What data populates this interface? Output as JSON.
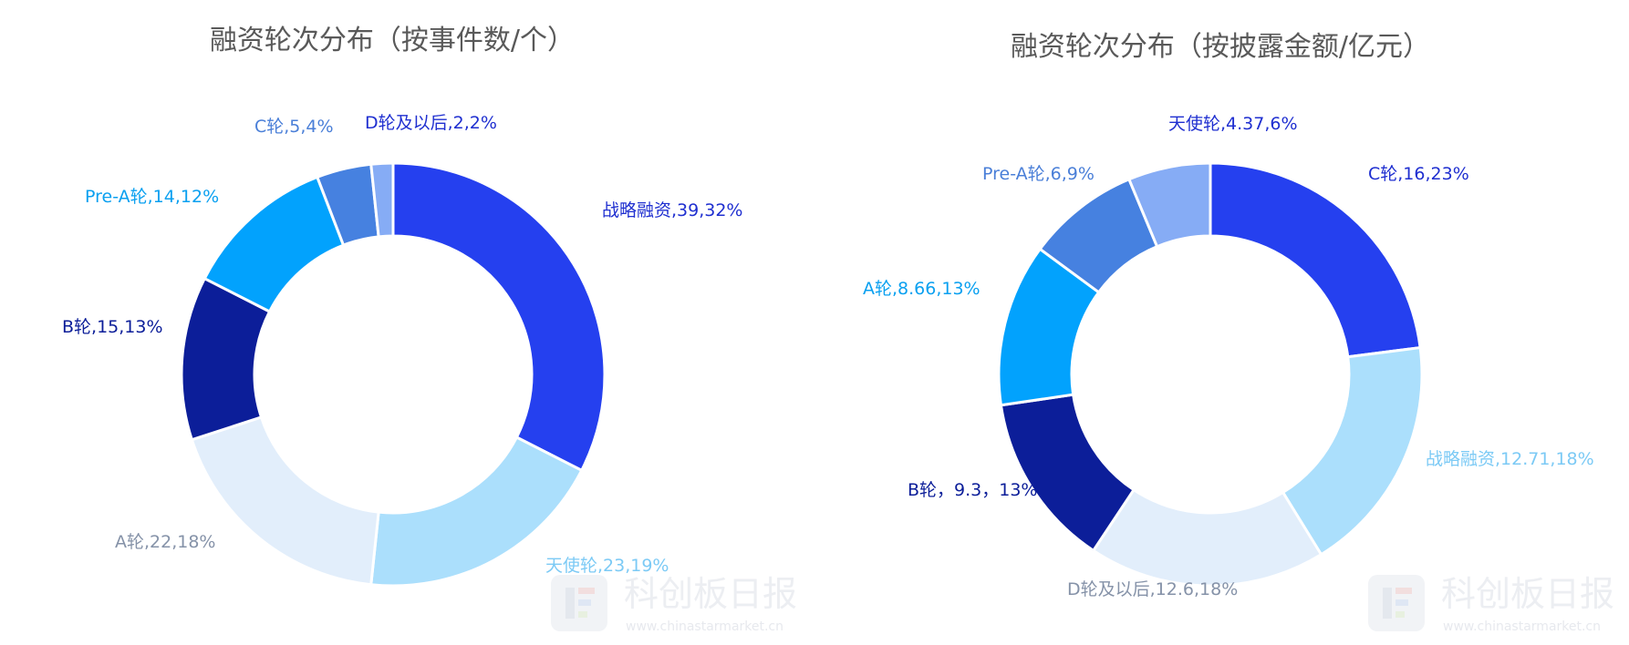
{
  "chart_data": [
    {
      "type": "pie",
      "title": "融资轮次分布（按事件数/个）",
      "unit": "个",
      "slices": [
        {
          "name": "战略融资",
          "value": 39,
          "percent": "32%",
          "label": "战略融资,39,32%",
          "color": "#2540ef",
          "label_color": "#1f2fd0"
        },
        {
          "name": "天使轮",
          "value": 23,
          "percent": "19%",
          "label": "天使轮,23,19%",
          "color": "#abdffc",
          "label_color": "#7ccaf5"
        },
        {
          "name": "A轮",
          "value": 22,
          "percent": "18%",
          "label": "A轮,22,18%",
          "color": "#e2eefb",
          "label_color": "#8592a8"
        },
        {
          "name": "B轮",
          "value": 15,
          "percent": "13%",
          "label": "B轮,15,13%",
          "color": "#0c1e99",
          "label_color": "#0c1e99"
        },
        {
          "name": "Pre-A轮",
          "value": 14,
          "percent": "12%",
          "label": "Pre-A轮,14,12%",
          "color": "#02a2fd",
          "label_color": "#0aa0f0"
        },
        {
          "name": "C轮",
          "value": 5,
          "percent": "4%",
          "label": "C轮,5,4%",
          "color": "#4681e0",
          "label_color": "#4a7fd8"
        },
        {
          "name": "D轮及以后",
          "value": 2,
          "percent": "2%",
          "label": "D轮及以后,2,2%",
          "color": "#86acf5",
          "label_color": "#1f2fd0"
        }
      ]
    },
    {
      "type": "pie",
      "title": "融资轮次分布（按披露金额/亿元）",
      "unit": "亿元",
      "slices": [
        {
          "name": "C轮",
          "value": 16,
          "percent": "23%",
          "label": "C轮,16,23%",
          "color": "#2540ef",
          "label_color": "#1f2fd0"
        },
        {
          "name": "战略融资",
          "value": 12.71,
          "percent": "18%",
          "label": "战略融资,12.71,18%",
          "color": "#abdffc",
          "label_color": "#7ccaf5"
        },
        {
          "name": "D轮及以后",
          "value": 12.6,
          "percent": "18%",
          "label": "D轮及以后,12.6,18%",
          "color": "#e2eefb",
          "label_color": "#8592a8"
        },
        {
          "name": "B轮",
          "value": 9.3,
          "percent": "13%",
          "label": "B轮，9.3，13%",
          "color": "#0c1e99",
          "label_color": "#0c1e99"
        },
        {
          "name": "A轮",
          "value": 8.66,
          "percent": "13%",
          "label": "A轮,8.66,13%",
          "color": "#02a2fd",
          "label_color": "#0aa0f0"
        },
        {
          "name": "Pre-A轮",
          "value": 6,
          "percent": "9%",
          "label": "Pre-A轮,6,9%",
          "color": "#4681e0",
          "label_color": "#4a7fd8"
        },
        {
          "name": "天使轮",
          "value": 4.37,
          "percent": "6%",
          "label": "天使轮,4.37,6%",
          "color": "#86acf5",
          "label_color": "#1f2fd0"
        }
      ]
    }
  ],
  "watermark": {
    "name": "科创板日报",
    "url": "www.chinastarmarket.cn"
  }
}
